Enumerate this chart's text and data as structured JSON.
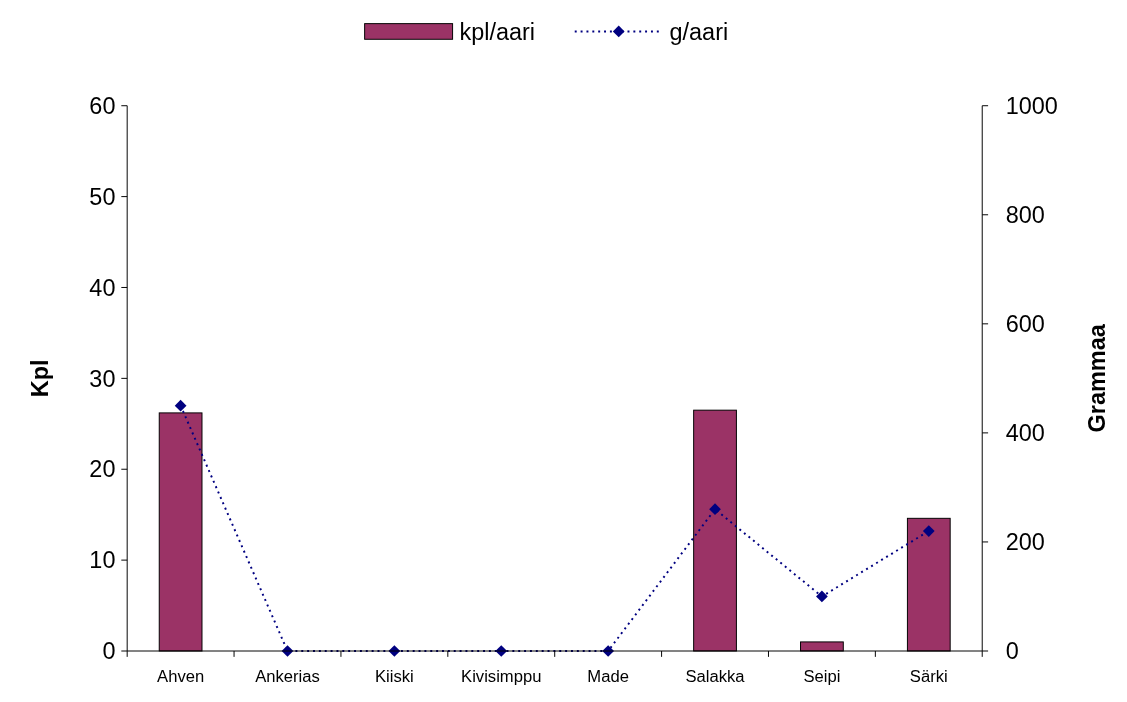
{
  "chart_data": {
    "type": "bar",
    "categories": [
      "Ahven",
      "Ankerias",
      "Kiiski",
      "Kivisimppu",
      "Made",
      "Salakka",
      "Seipi",
      "Särki"
    ],
    "ylabel": "Kpl",
    "y2label": "Grammaa",
    "ylim": [
      0,
      60
    ],
    "yticks": [
      0,
      10,
      20,
      30,
      40,
      50,
      60
    ],
    "y2lim": [
      0,
      1000
    ],
    "y2ticks": [
      0,
      200,
      400,
      600,
      800,
      1000
    ],
    "legend": "top",
    "grid": false,
    "series": [
      {
        "name": "kpl/aari",
        "color": "#9b3366",
        "values": [
          26.2,
          0,
          0,
          0,
          0,
          26.5,
          1,
          14.6
        ]
      },
      {
        "name": "g/aari",
        "type": "line",
        "axis": "y2",
        "color": "#000080",
        "marker": "diamond",
        "line_style": "dotted",
        "values": [
          450,
          0,
          0,
          0,
          0,
          260,
          100,
          220
        ]
      }
    ]
  }
}
